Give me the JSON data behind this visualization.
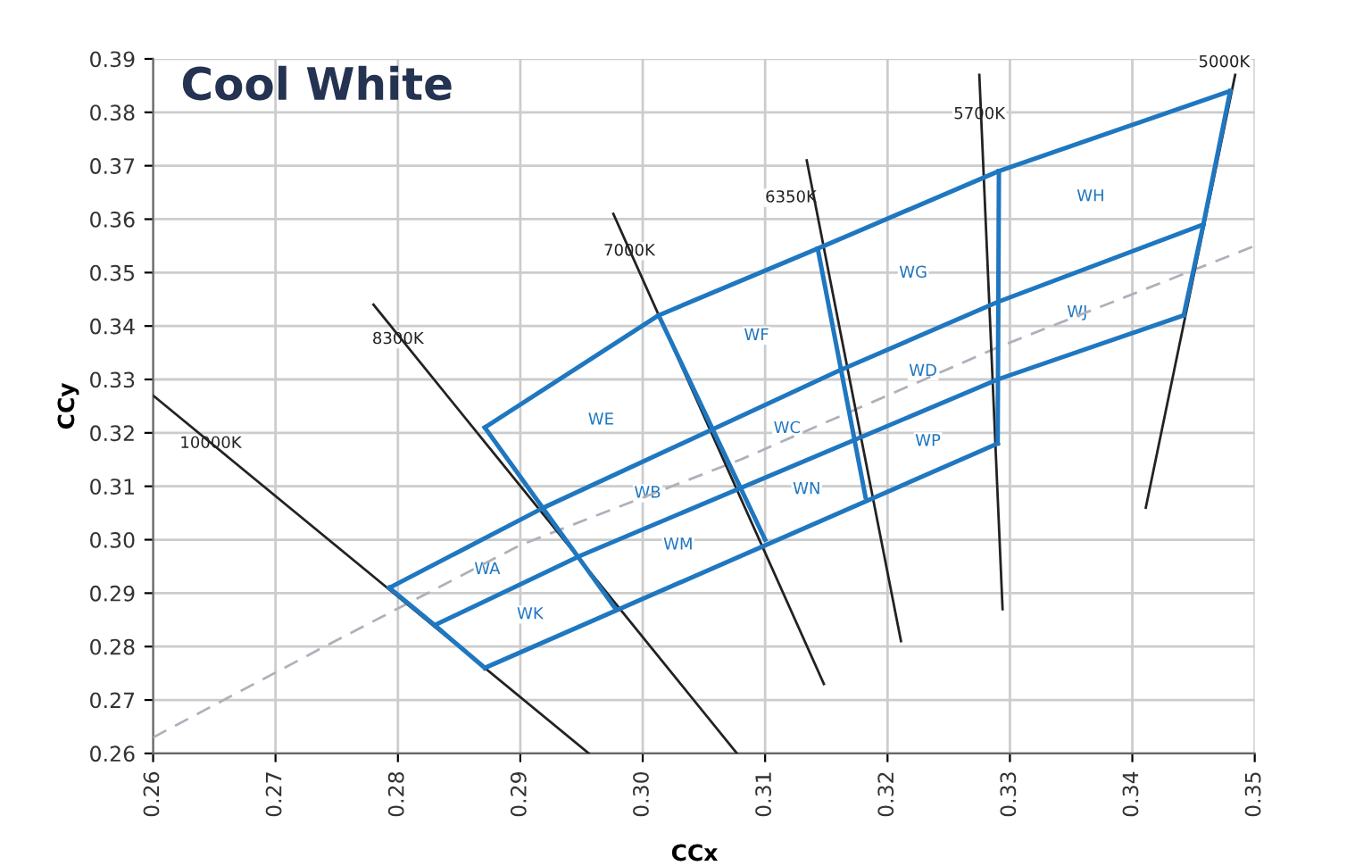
{
  "chart_data": {
    "type": "line",
    "title": "Cool White",
    "xlabel": "CCx",
    "ylabel": "CCy",
    "xlim": [
      0.26,
      0.35
    ],
    "ylim": [
      0.26,
      0.39
    ],
    "xticks": [
      0.26,
      0.27,
      0.28,
      0.29,
      {
        "value": 0.3,
        "label": "0.30"
      },
      0.31,
      0.32,
      0.33,
      0.34,
      0.35
    ],
    "yticks": [
      0.26,
      0.27,
      0.28,
      0.29,
      {
        "value": 0.3,
        "label": "0.30"
      },
      0.31,
      0.32,
      0.33,
      0.34,
      0.35,
      0.36,
      0.37,
      0.38,
      0.39
    ],
    "grid": true,
    "legend": false,
    "marker": "none",
    "series": [
      {
        "color": "#b0b0bc",
        "line_style": "dashed",
        "x": [
          0.26,
          0.274,
          0.29,
          0.308,
          0.329,
          0.35
        ],
        "values": [
          0.263,
          0.28,
          0.299,
          0.315,
          0.336,
          0.355
        ]
      },
      {
        "color": "#222222",
        "line_style": "solid",
        "x": [
          0.26,
          0.2956
        ],
        "values": [
          0.327,
          0.26
        ]
      },
      {
        "color": "#222222",
        "line_style": "solid",
        "x": [
          0.278,
          0.3077
        ],
        "values": [
          0.344,
          0.26
        ]
      },
      {
        "color": "#222222",
        "line_style": "solid",
        "x": [
          0.2976,
          0.3148
        ],
        "values": [
          0.361,
          0.273
        ]
      },
      {
        "color": "#222222",
        "line_style": "solid",
        "x": [
          0.3134,
          0.3211
        ],
        "values": [
          0.371,
          0.281
        ]
      },
      {
        "color": "#222222",
        "line_style": "solid",
        "x": [
          0.3275,
          0.3294
        ],
        "values": [
          0.387,
          0.287
        ]
      },
      {
        "color": "#222222",
        "line_style": "solid",
        "x": [
          0.3484,
          0.3411
        ],
        "values": [
          0.387,
          0.306
        ]
      },
      {
        "color": "#1f77c0",
        "line_style": "solid",
        "x": [
          0.2871,
          0.3013,
          0.3143,
          0.3291,
          0.348
        ],
        "values": [
          0.321,
          0.342,
          0.3545,
          0.369,
          0.384
        ]
      },
      {
        "color": "#1f77c0",
        "line_style": "solid",
        "x": [
          0.2793,
          0.2919,
          0.3159,
          0.329,
          0.3458
        ],
        "values": [
          0.291,
          0.306,
          0.3315,
          0.3445,
          0.359
        ]
      },
      {
        "color": "#1f77c0",
        "line_style": "solid",
        "x": [
          0.283,
          0.2949,
          0.329,
          0.3442
        ],
        "values": [
          0.284,
          0.297,
          0.33,
          0.342
        ]
      },
      {
        "color": "#1f77c0",
        "line_style": "solid",
        "x": [
          0.2871,
          0.329
        ],
        "values": [
          0.276,
          0.318
        ]
      },
      {
        "color": "#1f77c0",
        "line_style": "solid",
        "x": [
          0.2793,
          0.283,
          0.2871
        ],
        "values": [
          0.291,
          0.284,
          0.276
        ]
      },
      {
        "color": "#1f77c0",
        "line_style": "solid",
        "x": [
          0.2871,
          0.2978
        ],
        "values": [
          0.321,
          0.287
        ]
      },
      {
        "color": "#1f77c0",
        "line_style": "solid",
        "x": [
          0.3013,
          0.31
        ],
        "values": [
          0.342,
          0.3
        ]
      },
      {
        "color": "#1f77c0",
        "line_style": "solid",
        "x": [
          0.3143,
          0.3182
        ],
        "values": [
          0.3545,
          0.308
        ]
      },
      {
        "color": "#1f77c0",
        "line_style": "solid",
        "x": [
          0.3291,
          0.329
        ],
        "values": [
          0.369,
          0.318
        ]
      },
      {
        "color": "#1f77c0",
        "line_style": "solid",
        "x": [
          0.348,
          0.3458,
          0.3442
        ],
        "values": [
          0.384,
          0.359,
          0.342
        ]
      }
    ],
    "annotations": [
      {
        "text": "10000K",
        "x": 0.2647,
        "y": 0.318
      },
      {
        "text": "8300K",
        "x": 0.28,
        "y": 0.3375
      },
      {
        "text": "7000K",
        "x": 0.2989,
        "y": 0.354
      },
      {
        "text": "6350K",
        "x": 0.3121,
        "y": 0.364
      },
      {
        "text": "5700K",
        "x": 0.3275,
        "y": 0.3796
      },
      {
        "text": "5000K",
        "x": 0.3475,
        "y": 0.3893
      },
      {
        "text": "WE",
        "x": 0.2966,
        "y": 0.3224
      },
      {
        "text": "WF",
        "x": 0.3093,
        "y": 0.3382
      },
      {
        "text": "WG",
        "x": 0.3221,
        "y": 0.3499
      },
      {
        "text": "WH",
        "x": 0.3366,
        "y": 0.3642
      },
      {
        "text": "WJ",
        "x": 0.3355,
        "y": 0.3425
      },
      {
        "text": "WD",
        "x": 0.3229,
        "y": 0.3315
      },
      {
        "text": "WC",
        "x": 0.3118,
        "y": 0.3208
      },
      {
        "text": "WP",
        "x": 0.3233,
        "y": 0.3184
      },
      {
        "text": "WN",
        "x": 0.3134,
        "y": 0.3094
      },
      {
        "text": "WB",
        "x": 0.3004,
        "y": 0.3087
      },
      {
        "text": "WM",
        "x": 0.3029,
        "y": 0.299
      },
      {
        "text": "WA",
        "x": 0.2873,
        "y": 0.2944
      },
      {
        "text": "WK",
        "x": 0.2908,
        "y": 0.286
      }
    ]
  }
}
